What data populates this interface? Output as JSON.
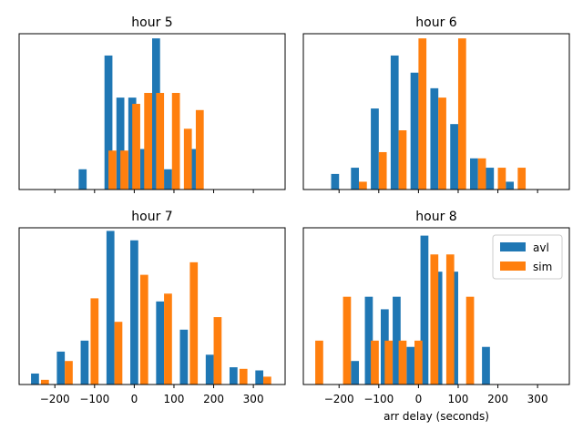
{
  "chart_data": [
    {
      "type": "bar",
      "title": "hour 5",
      "xlim": [
        -290,
        380
      ],
      "ylim": [
        0,
        1
      ],
      "x_ticks": [
        -200,
        -100,
        0,
        100,
        200,
        300
      ],
      "show_tick_labels": false,
      "xlabel": "",
      "ylabel": "",
      "legend": null,
      "series": [
        {
          "name": "avl",
          "color": "#1f77b4",
          "points": [
            [
              -130,
              0.13
            ],
            [
              -65,
              0.86
            ],
            [
              -35,
              0.59
            ],
            [
              -5,
              0.59
            ],
            [
              25,
              0.26
            ],
            [
              55,
              0.97
            ],
            [
              85,
              0.13
            ],
            [
              150,
              0.26
            ]
          ]
        },
        {
          "name": "sim",
          "color": "#ff7f0e",
          "points": [
            [
              -55,
              0.25
            ],
            [
              -25,
              0.25
            ],
            [
              5,
              0.55
            ],
            [
              35,
              0.62
            ],
            [
              65,
              0.62
            ],
            [
              105,
              0.62
            ],
            [
              135,
              0.39
            ],
            [
              165,
              0.51
            ]
          ]
        }
      ]
    },
    {
      "type": "bar",
      "title": "hour 6",
      "xlim": [
        -290,
        380
      ],
      "ylim": [
        0,
        1
      ],
      "x_ticks": [
        -200,
        -100,
        0,
        100,
        200,
        300
      ],
      "show_tick_labels": false,
      "xlabel": "",
      "ylabel": "",
      "legend": null,
      "series": [
        {
          "name": "avl",
          "color": "#1f77b4",
          "points": [
            [
              -210,
              0.1
            ],
            [
              -160,
              0.14
            ],
            [
              -110,
              0.52
            ],
            [
              -60,
              0.86
            ],
            [
              -10,
              0.75
            ],
            [
              40,
              0.65
            ],
            [
              90,
              0.42
            ],
            [
              140,
              0.2
            ],
            [
              180,
              0.14
            ],
            [
              230,
              0.05
            ]
          ]
        },
        {
          "name": "sim",
          "color": "#ff7f0e",
          "points": [
            [
              -140,
              0.05
            ],
            [
              -90,
              0.24
            ],
            [
              -40,
              0.38
            ],
            [
              10,
              0.97
            ],
            [
              60,
              0.59
            ],
            [
              110,
              0.97
            ],
            [
              160,
              0.2
            ],
            [
              210,
              0.14
            ],
            [
              260,
              0.14
            ]
          ]
        }
      ]
    },
    {
      "type": "bar",
      "title": "hour 7",
      "xlim": [
        -290,
        380
      ],
      "ylim": [
        0,
        1
      ],
      "x_ticks": [
        -200,
        -100,
        0,
        100,
        200,
        300
      ],
      "show_tick_labels": true,
      "xlabel": "",
      "ylabel": "",
      "legend": null,
      "series": [
        {
          "name": "avl",
          "color": "#1f77b4",
          "points": [
            [
              -250,
              0.07
            ],
            [
              -185,
              0.21
            ],
            [
              -125,
              0.28
            ],
            [
              -60,
              0.98
            ],
            [
              0,
              0.92
            ],
            [
              65,
              0.53
            ],
            [
              125,
              0.35
            ],
            [
              190,
              0.19
            ],
            [
              250,
              0.11
            ],
            [
              315,
              0.09
            ]
          ]
        },
        {
          "name": "sim",
          "color": "#ff7f0e",
          "points": [
            [
              -225,
              0.03
            ],
            [
              -165,
              0.15
            ],
            [
              -100,
              0.55
            ],
            [
              -40,
              0.4
            ],
            [
              25,
              0.7
            ],
            [
              85,
              0.58
            ],
            [
              150,
              0.78
            ],
            [
              210,
              0.43
            ],
            [
              275,
              0.1
            ],
            [
              335,
              0.05
            ]
          ]
        }
      ]
    },
    {
      "type": "bar",
      "title": "hour 8",
      "xlim": [
        -290,
        380
      ],
      "ylim": [
        0,
        1
      ],
      "x_ticks": [
        -200,
        -100,
        0,
        100,
        200,
        300
      ],
      "show_tick_labels": true,
      "xlabel": "arr delay (seconds)",
      "ylabel": "",
      "legend": {
        "position": "top-right",
        "entries": [
          "avl",
          "sim"
        ]
      },
      "series": [
        {
          "name": "avl",
          "color": "#1f77b4",
          "points": [
            [
              -160,
              0.15
            ],
            [
              -125,
              0.56
            ],
            [
              -85,
              0.48
            ],
            [
              -55,
              0.56
            ],
            [
              -20,
              0.24
            ],
            [
              15,
              0.95
            ],
            [
              50,
              0.72
            ],
            [
              90,
              0.72
            ],
            [
              170,
              0.24
            ]
          ]
        },
        {
          "name": "sim",
          "color": "#ff7f0e",
          "points": [
            [
              -250,
              0.28
            ],
            [
              -180,
              0.56
            ],
            [
              -110,
              0.28
            ],
            [
              -75,
              0.28
            ],
            [
              -40,
              0.28
            ],
            [
              0,
              0.28
            ],
            [
              40,
              0.83
            ],
            [
              80,
              0.83
            ],
            [
              130,
              0.56
            ]
          ]
        }
      ]
    }
  ]
}
